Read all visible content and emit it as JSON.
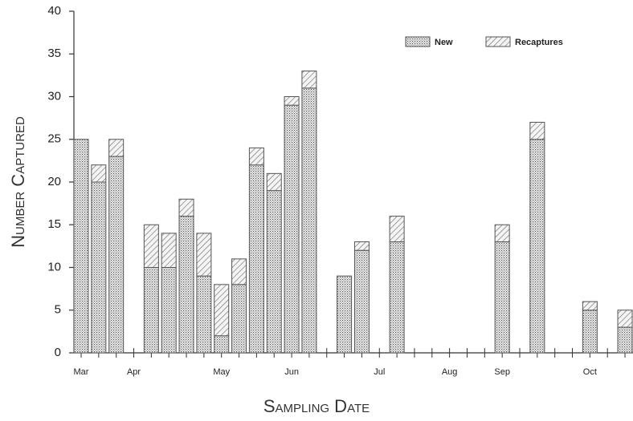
{
  "chart_data": {
    "type": "stacked_bar",
    "xlabel": "Sampling Date",
    "ylabel": "Number Captured",
    "categories": [
      "Mar",
      null,
      null,
      "Apr",
      null,
      null,
      null,
      null,
      "May",
      null,
      null,
      null,
      "Jun",
      null,
      null,
      null,
      null,
      "Jul",
      null,
      null,
      null,
      "Aug",
      null,
      null,
      "Sep",
      null,
      null,
      null,
      null,
      "Oct",
      null,
      null
    ],
    "series": [
      {
        "name": "New",
        "color": "#555555",
        "pattern": "dots",
        "values": [
          25,
          20,
          23,
          null,
          10,
          10,
          16,
          9,
          2,
          8,
          22,
          19,
          29,
          31,
          null,
          9,
          12,
          null,
          13,
          null,
          null,
          null,
          null,
          null,
          13,
          null,
          25,
          null,
          null,
          5,
          null,
          3
        ]
      },
      {
        "name": "Recaptures",
        "color": "#555555",
        "pattern": "hatch",
        "values": [
          0,
          2,
          2,
          null,
          5,
          4,
          2,
          5,
          6,
          3,
          2,
          2,
          1,
          2,
          null,
          0,
          1,
          null,
          3,
          null,
          null,
          null,
          null,
          null,
          2,
          null,
          2,
          null,
          null,
          1,
          null,
          2
        ]
      }
    ],
    "ylim": [
      0,
      40
    ],
    "yticks": [
      0,
      5,
      10,
      15,
      20,
      25,
      30,
      35,
      40
    ],
    "legend": "upper right"
  }
}
